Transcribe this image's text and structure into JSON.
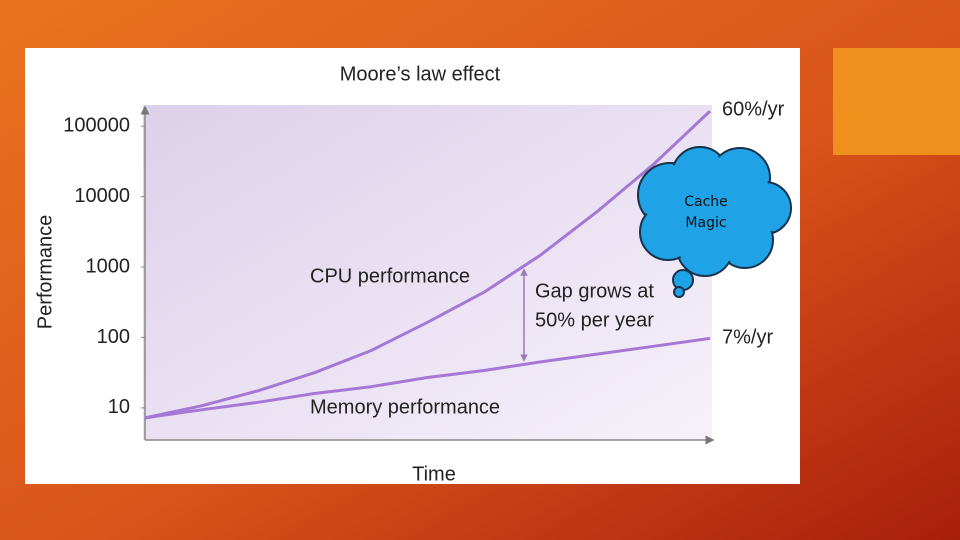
{
  "chart_data": {
    "type": "line",
    "title": "Moore’s law effect",
    "x_label": "Time",
    "y_label": "Performance",
    "log_scale": true,
    "categories": [
      null,
      null,
      null,
      null,
      null,
      null,
      null,
      null,
      null,
      null,
      null
    ],
    "series": [
      {
        "name": "CPU performance",
        "color": "#a678d6",
        "values": [
          7.2,
          10.7,
          17.5,
          31.6,
          65,
          164,
          440,
          1480,
          6100,
          28700,
          164000
        ]
      },
      {
        "name": "Memory performance",
        "color": "#a678d6",
        "values": [
          7.2,
          9.4,
          12,
          16,
          20,
          27,
          34,
          45,
          58,
          75,
          97
        ]
      }
    ],
    "ylim": [
      3.5,
      200000
    ],
    "yticks": [
      10,
      100,
      1000,
      10000,
      100000
    ],
    "annotations": {
      "cpu_rate": "60%/yr",
      "memory_rate": "7%/yr",
      "gap": [
        "Gap grows at",
        "50% per year"
      ],
      "cloud": [
        "Cache",
        "Magic"
      ]
    }
  }
}
